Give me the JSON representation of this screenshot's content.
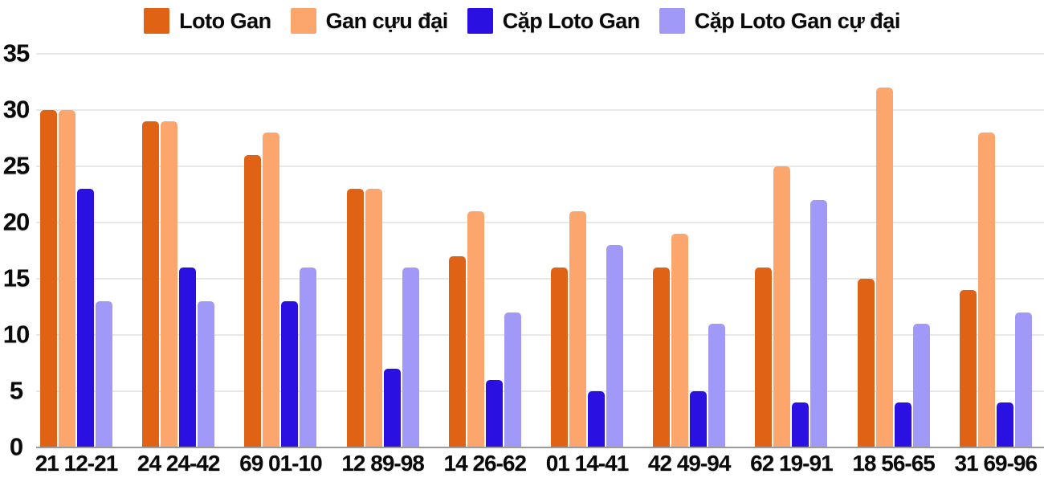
{
  "chart_data": {
    "type": "bar",
    "title": "",
    "xlabel": "",
    "ylabel": "",
    "categories": [
      "21 12-21",
      "24 24-42",
      "69 01-10",
      "12 89-98",
      "14 26-62",
      "01 14-41",
      "42 49-94",
      "62 19-91",
      "18 56-65",
      "31 69-96"
    ],
    "series": [
      {
        "name": "Loto Gan",
        "color": "#df6215",
        "values": [
          30,
          29,
          26,
          23,
          17,
          16,
          16,
          16,
          15,
          14
        ]
      },
      {
        "name": "Gan cựu đại",
        "color": "#fca56c",
        "values": [
          30,
          29,
          28,
          23,
          21,
          21,
          19,
          25,
          32,
          28
        ]
      },
      {
        "name": "Cặp Loto Gan",
        "color": "#2a10e1",
        "values": [
          23,
          16,
          13,
          7,
          6,
          5,
          5,
          4,
          4,
          4
        ]
      },
      {
        "name": "Cặp Loto Gan cự đại",
        "color": "#a099f8",
        "values": [
          13,
          13,
          16,
          16,
          12,
          18,
          11,
          22,
          11,
          12
        ]
      }
    ],
    "ylim": [
      0,
      35
    ],
    "yticks": [
      0,
      5,
      10,
      15,
      20,
      25,
      30,
      35
    ],
    "grid": true,
    "legend_position": "top"
  },
  "colors": {
    "background": "#ffffff",
    "gridline": "#e8e8e8",
    "axis_line": "#9a9a9a",
    "text": "#0a0a0a"
  }
}
